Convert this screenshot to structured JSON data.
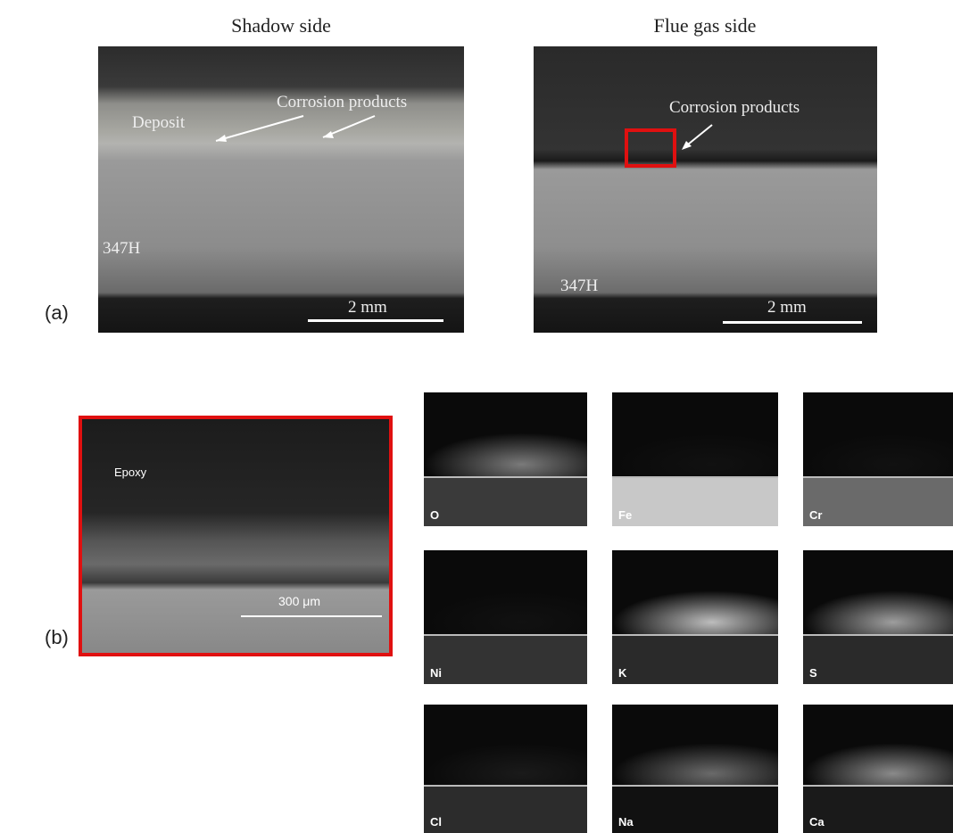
{
  "panel_a": {
    "label": "(a)",
    "images": [
      {
        "title": "Shadow side",
        "annotations": [
          "Deposit",
          "Corrosion products"
        ],
        "material": "347H",
        "scale_bar": "2 mm"
      },
      {
        "title": "Flue gas side",
        "annotations": [
          "Corrosion products"
        ],
        "material": "347H",
        "scale_bar": "2 mm"
      }
    ]
  },
  "panel_b": {
    "label": "(b)",
    "sem_image": {
      "annotation": "Epoxy",
      "scale_bar": "300 μm"
    },
    "maps": [
      {
        "element": "O"
      },
      {
        "element": "Fe"
      },
      {
        "element": "Cr"
      },
      {
        "element": "Ni"
      },
      {
        "element": "K"
      },
      {
        "element": "S"
      },
      {
        "element": "Cl"
      },
      {
        "element": "Na"
      },
      {
        "element": "Ca"
      }
    ]
  }
}
